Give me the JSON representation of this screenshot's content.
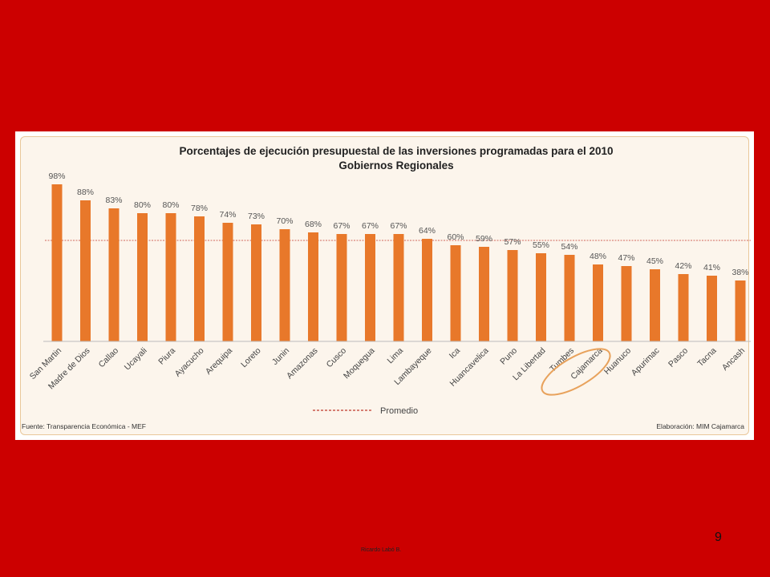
{
  "chart_data": {
    "type": "bar",
    "title": "Porcentajes de ejecución presupuestal de las inversiones programadas para el 2010",
    "subtitle": "Gobiernos Regionales",
    "categories": [
      "San Martin",
      "Madre de Dios",
      "Callao",
      "Ucayali",
      "Piura",
      "Ayacucho",
      "Arequipa",
      "Loreto",
      "Junin",
      "Amazonas",
      "Cusco",
      "Moquegua",
      "Lima",
      "Lambayeque",
      "Ica",
      "Huancavelica",
      "Puno",
      "La Libertad",
      "Tumbes",
      "Cajamarca",
      "Huanuco",
      "Apurimac",
      "Pasco",
      "Tacna",
      "Ancash"
    ],
    "values": [
      98,
      88,
      83,
      80,
      80,
      78,
      74,
      73,
      70,
      68,
      67,
      67,
      67,
      64,
      60,
      59,
      57,
      55,
      54,
      48,
      47,
      45,
      42,
      41,
      38
    ],
    "value_labels": [
      "98%",
      "88%",
      "83%",
      "80%",
      "80%",
      "78%",
      "74%",
      "73%",
      "70%",
      "68%",
      "67%",
      "67%",
      "67%",
      "64%",
      "60%",
      "59%",
      "57%",
      "55%",
      "54%",
      "48%",
      "47%",
      "45%",
      "42%",
      "41%",
      "38%"
    ],
    "average_value": 63,
    "legend": {
      "average_label": "Promedio",
      "placement": "bottom-center"
    },
    "highlight_category": "Cajamarca",
    "ylim": [
      0,
      100
    ],
    "grid": false,
    "colors": {
      "bar": "#e8782a",
      "average_line": "#c0392b",
      "highlight_ellipse": "#e8a25c"
    }
  },
  "footer": {
    "source": "Fuente: Transparencia Económica - MEF",
    "credit": "Elaboración: MIM Cajamarca"
  },
  "slide": {
    "number": "9",
    "author": "Ricardo Labó B."
  }
}
